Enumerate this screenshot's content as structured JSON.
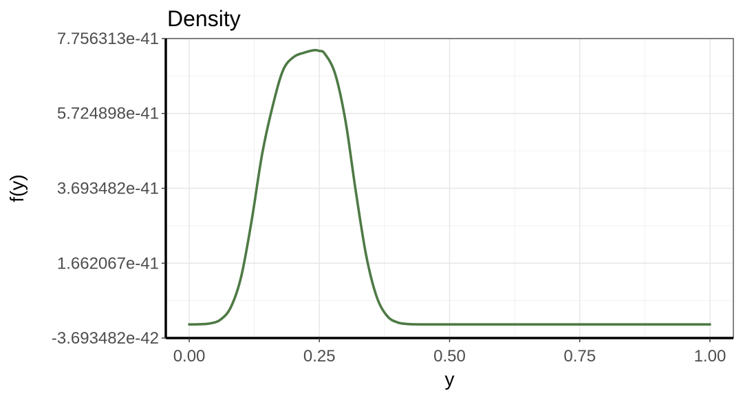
{
  "chart_data": {
    "type": "line",
    "title": "Density",
    "xlabel": "y",
    "ylabel": "f(y)",
    "xlim": [
      -0.045,
      1.045
    ],
    "ylim": [
      -3.693482e-42,
      7.756313e-41
    ],
    "x_ticks": [
      0.0,
      0.25,
      0.5,
      0.75,
      1.0
    ],
    "x_tick_labels": [
      "0.00",
      "0.25",
      "0.50",
      "0.75",
      "1.00"
    ],
    "y_ticks": [
      -3.693482e-42,
      1.662067e-41,
      3.693482e-41,
      5.724898e-41,
      7.756313e-41
    ],
    "y_tick_labels": [
      "-3.693482e-42",
      "1.662067e-41",
      "3.693482e-41",
      "5.724898e-41",
      "7.756313e-41"
    ],
    "grid": true,
    "line_color": "#4e7a45",
    "series": [
      {
        "x": [
          0.0,
          0.02,
          0.04,
          0.06,
          0.08,
          0.1,
          0.12,
          0.14,
          0.16,
          0.18,
          0.2,
          0.22,
          0.24,
          0.25,
          0.26,
          0.28,
          0.3,
          0.32,
          0.34,
          0.36,
          0.38,
          0.4,
          0.42,
          0.44,
          0.46,
          0.5,
          0.6,
          0.7,
          0.8,
          0.9,
          1.0
        ],
        "y": [
          0.0,
          5e-44,
          2.8e-43,
          1.3e-42,
          4.7e-42,
          1.31e-41,
          2.83e-41,
          4.62e-41,
          5.91e-41,
          6.89e-41,
          7.25e-41,
          7.37e-41,
          7.44e-41,
          7.42e-41,
          7.35e-41,
          6.81e-41,
          5.53e-41,
          3.6e-41,
          1.86e-41,
          7.5e-42,
          2.3e-42,
          5.4e-43,
          1e-43,
          1.5e-44,
          2e-45,
          0.0,
          0.0,
          0.0,
          0.0,
          0.0,
          0.0
        ]
      }
    ]
  }
}
